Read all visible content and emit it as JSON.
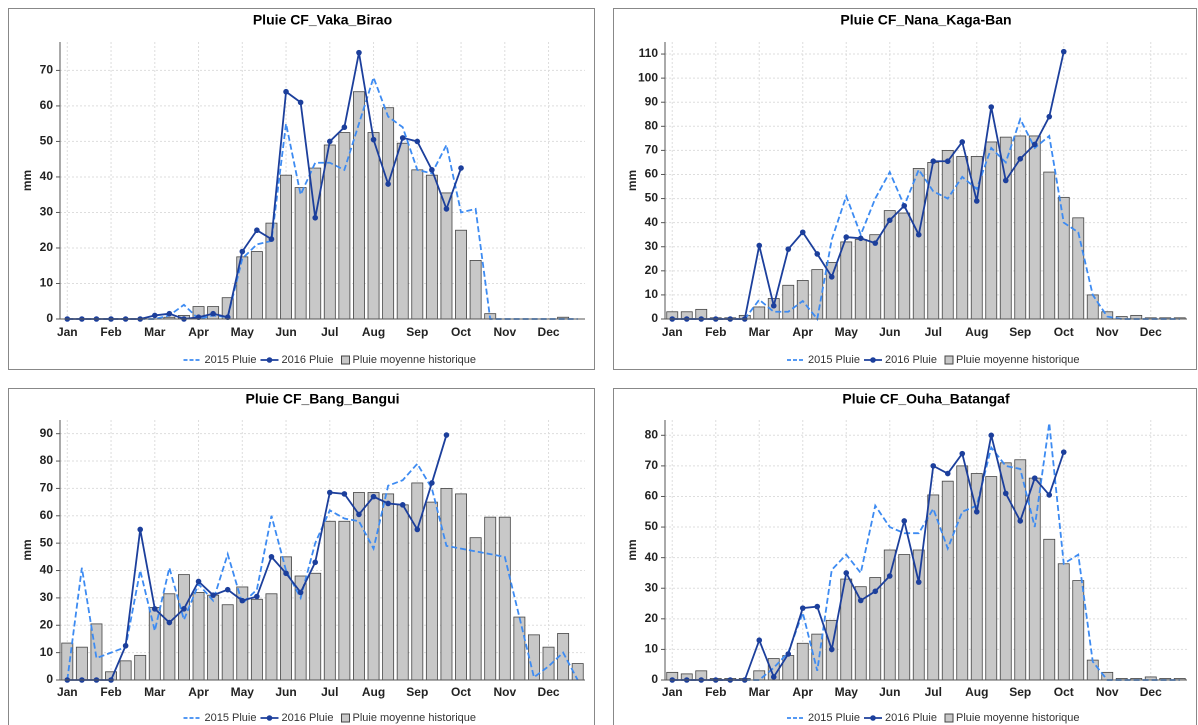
{
  "chart_data": [
    {
      "type": "bar_line",
      "title": "Pluie CF_Vaka_Birao",
      "y_label": "mm",
      "grid": true,
      "categories": [
        "Jan",
        null,
        null,
        "Feb",
        null,
        null,
        "Mar",
        null,
        null,
        "Apr",
        null,
        null,
        "May",
        null,
        null,
        "Jun",
        null,
        null,
        "Jul",
        null,
        null,
        "Aug",
        null,
        null,
        "Sep",
        null,
        null,
        "Oct",
        null,
        null,
        "Nov",
        null,
        null,
        "Dec",
        null,
        null
      ],
      "ylim": [
        0,
        78
      ],
      "yticks": [
        0,
        10,
        20,
        30,
        40,
        50,
        60,
        70
      ],
      "series": [
        {
          "name": "2015 Pluie",
          "mark": "dashed-line",
          "color": "#3d8bf2",
          "values": [
            0,
            0,
            0,
            0,
            0,
            0,
            0,
            1,
            4,
            0,
            1,
            0.5,
            17,
            21,
            22,
            55,
            35,
            44,
            44,
            42,
            55,
            68,
            57,
            54,
            42,
            41,
            49,
            30,
            31,
            0,
            0,
            0,
            0,
            0,
            0,
            0
          ]
        },
        {
          "name": "2016 Pluie",
          "mark": "line-dot",
          "color": "#1c3f9c",
          "values": [
            0,
            0,
            0,
            0,
            0,
            0,
            1,
            1.5,
            0,
            0.5,
            1.5,
            0.5,
            19,
            25,
            22.5,
            64,
            61,
            28.5,
            50,
            54,
            75,
            50.5,
            38,
            51,
            50,
            42,
            31,
            42.5,
            null,
            null,
            null,
            null,
            null,
            null,
            null,
            null
          ]
        },
        {
          "name": "Pluie moyenne historique",
          "mark": "bar",
          "color": "#c8c8c8",
          "values": [
            0,
            0,
            0,
            0,
            0,
            0,
            0,
            0.5,
            1,
            3.5,
            3.5,
            6,
            17.5,
            19,
            27,
            40.5,
            37,
            42.5,
            49,
            52.5,
            64,
            52.5,
            59.5,
            49.5,
            42,
            40.5,
            35.5,
            25,
            16.5,
            1.5,
            0,
            0,
            0,
            0,
            0.5,
            0
          ]
        }
      ]
    },
    {
      "type": "bar_line",
      "title": "Pluie CF_Nana_Kaga-Ban",
      "y_label": "mm",
      "grid": true,
      "categories": [
        "Jan",
        null,
        null,
        "Feb",
        null,
        null,
        "Mar",
        null,
        null,
        "Apr",
        null,
        null,
        "May",
        null,
        null,
        "Jun",
        null,
        null,
        "Jul",
        null,
        null,
        "Aug",
        null,
        null,
        "Sep",
        null,
        null,
        "Oct",
        null,
        null,
        "Nov",
        null,
        null,
        "Dec",
        null,
        null
      ],
      "ylim": [
        0,
        115
      ],
      "yticks": [
        0,
        10,
        20,
        30,
        40,
        50,
        60,
        70,
        80,
        90,
        100,
        110
      ],
      "series": [
        {
          "name": "2015 Pluie",
          "mark": "dashed-line",
          "color": "#3d8bf2",
          "values": [
            0,
            0,
            0,
            0,
            0,
            0,
            8,
            3,
            3,
            7.5,
            0,
            33,
            51,
            35,
            50,
            61,
            47,
            62,
            53,
            50,
            59,
            54,
            71,
            65,
            83,
            71,
            76,
            40,
            36,
            10,
            1,
            0,
            0,
            0,
            0,
            0
          ]
        },
        {
          "name": "2016 Pluie",
          "mark": "line-dot",
          "color": "#1c3f9c",
          "values": [
            0,
            0,
            0,
            0,
            0,
            0,
            30.5,
            5.5,
            29,
            36,
            27,
            17.5,
            34,
            33.5,
            31.5,
            41,
            47,
            35,
            65.5,
            65.5,
            73.5,
            49,
            88,
            57.5,
            66.5,
            72.5,
            84,
            111,
            null,
            null,
            null,
            null,
            null,
            null,
            null,
            null
          ]
        },
        {
          "name": "Pluie moyenne historique",
          "mark": "bar",
          "color": "#c8c8c8",
          "values": [
            3,
            3,
            4,
            0.5,
            0.5,
            1.5,
            5,
            8.5,
            14,
            16,
            20.5,
            23.5,
            32,
            33,
            35,
            45,
            44,
            62.5,
            65,
            70,
            67.5,
            67.5,
            73.5,
            75.5,
            76,
            76,
            61,
            50.5,
            42,
            10,
            3,
            1,
            1.5,
            0.5,
            0.5,
            0.5
          ]
        }
      ]
    },
    {
      "type": "bar_line",
      "title": "Pluie CF_Bang_Bangui",
      "y_label": "mm",
      "grid": true,
      "categories": [
        "Jan",
        null,
        null,
        "Feb",
        null,
        null,
        "Mar",
        null,
        null,
        "Apr",
        null,
        null,
        "May",
        null,
        null,
        "Jun",
        null,
        null,
        "Jul",
        null,
        null,
        "Aug",
        null,
        null,
        "Sep",
        null,
        null,
        "Oct",
        null,
        null,
        "Nov",
        null,
        null,
        "Dec",
        null,
        null
      ],
      "ylim": [
        0,
        95
      ],
      "yticks": [
        0,
        10,
        20,
        30,
        40,
        50,
        60,
        70,
        80,
        90
      ],
      "series": [
        {
          "name": "2015 Pluie",
          "mark": "dashed-line",
          "color": "#3d8bf2",
          "values": [
            0,
            41,
            8,
            10,
            12,
            40,
            18,
            41,
            22,
            35,
            29,
            46,
            28,
            33,
            60,
            40,
            30,
            50,
            62,
            59,
            58,
            48,
            71,
            73,
            79,
            70,
            49,
            48,
            47,
            46,
            45,
            23,
            1,
            5,
            10,
            0
          ]
        },
        {
          "name": "2016 Pluie",
          "mark": "line-dot",
          "color": "#1c3f9c",
          "values": [
            0,
            0,
            0,
            0,
            12.5,
            55,
            26,
            21,
            26,
            36,
            31,
            33,
            29,
            30.5,
            45,
            39,
            32,
            43,
            68.5,
            68,
            60.5,
            67,
            64.5,
            64,
            55,
            72,
            89.5,
            null,
            null,
            null,
            null,
            null,
            null,
            null,
            null,
            null
          ]
        },
        {
          "name": "Pluie moyenne historique",
          "mark": "bar",
          "color": "#c8c8c8",
          "values": [
            13.5,
            12,
            20.5,
            3,
            7,
            9,
            26.5,
            31.5,
            38.5,
            32,
            31,
            27.5,
            34,
            29.5,
            31.5,
            45,
            38,
            39,
            58,
            58,
            68.5,
            68.5,
            68,
            64,
            72,
            65,
            70,
            68,
            52,
            59.5,
            59.5,
            23,
            16.5,
            12,
            17,
            6
          ]
        }
      ]
    },
    {
      "type": "bar_line",
      "title": "Pluie CF_Ouha_Batangaf",
      "y_label": "mm",
      "grid": true,
      "categories": [
        "Jan",
        null,
        null,
        "Feb",
        null,
        null,
        "Mar",
        null,
        null,
        "Apr",
        null,
        null,
        "May",
        null,
        null,
        "Jun",
        null,
        null,
        "Jul",
        null,
        null,
        "Aug",
        null,
        null,
        "Sep",
        null,
        null,
        "Oct",
        null,
        null,
        "Nov",
        null,
        null,
        "Dec",
        null,
        null
      ],
      "ylim": [
        0,
        85
      ],
      "yticks": [
        0,
        10,
        20,
        30,
        40,
        50,
        60,
        70,
        80
      ],
      "series": [
        {
          "name": "2015 Pluie",
          "mark": "dashed-line",
          "color": "#3d8bf2",
          "values": [
            0,
            0,
            0,
            0,
            0,
            0,
            0,
            4,
            9,
            22,
            3,
            36,
            41,
            35,
            57,
            50,
            48,
            48,
            56,
            43,
            55,
            57,
            76,
            70,
            69,
            50,
            84,
            38,
            41,
            6,
            0,
            0,
            0,
            0,
            0,
            0
          ]
        },
        {
          "name": "2016 Pluie",
          "mark": "line-dot",
          "color": "#1c3f9c",
          "values": [
            0,
            0,
            0,
            0,
            0,
            0,
            13,
            1,
            8.5,
            23.5,
            24,
            10,
            35,
            26,
            29,
            34,
            52,
            32,
            70,
            67.5,
            74,
            55,
            80,
            61,
            52,
            66,
            60.5,
            74.5,
            null,
            null,
            null,
            null,
            null,
            null,
            null,
            null
          ]
        },
        {
          "name": "Pluie moyenne historique",
          "mark": "bar",
          "color": "#c8c8c8",
          "values": [
            2.5,
            2,
            3,
            0.5,
            0.5,
            0.5,
            3,
            7,
            8,
            12,
            15,
            19.5,
            33,
            30.5,
            33.5,
            42.5,
            41,
            42.5,
            60.5,
            65,
            70,
            67.5,
            66.5,
            71,
            72,
            66,
            46,
            38,
            32.5,
            6.5,
            2.5,
            0.5,
            0.5,
            1,
            0.5,
            0.5
          ]
        }
      ]
    }
  ]
}
